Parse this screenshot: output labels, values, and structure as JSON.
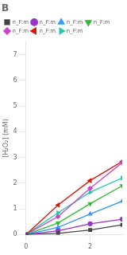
{
  "chart_data": {
    "type": "line",
    "title": "B",
    "ylabel": "[H₂O₂] (mM)",
    "xlim": [
      0,
      3
    ],
    "ylim": [
      0,
      7.5
    ],
    "xticks": [
      0,
      2
    ],
    "yticks": [
      0,
      1,
      2,
      3,
      4,
      5,
      6,
      7
    ],
    "grid": false,
    "legend": "upper left",
    "series": [
      {
        "name": "n_F:m",
        "color": "#444444",
        "marker": "square",
        "x": [
          0,
          1,
          2,
          3
        ],
        "values": [
          0,
          0.05,
          0.18,
          0.38
        ]
      },
      {
        "name": "n_F:m",
        "color": "#9933cc",
        "marker": "circle",
        "x": [
          0,
          1,
          2,
          3
        ],
        "values": [
          0,
          0.15,
          0.42,
          0.6
        ]
      },
      {
        "name": "n_F:m",
        "color": "#3399ff",
        "marker": "triangle_up",
        "x": [
          0,
          1,
          2,
          3
        ],
        "values": [
          0,
          0.28,
          0.8,
          1.3
        ]
      },
      {
        "name": "n_F:m",
        "color": "#33bb33",
        "marker": "triangle_down",
        "x": [
          0,
          1,
          2,
          3
        ],
        "values": [
          0,
          0.45,
          1.2,
          1.9
        ]
      },
      {
        "name": "n_F:m",
        "color": "#cc44cc",
        "marker": "diamond",
        "x": [
          0,
          1,
          2,
          3
        ],
        "values": [
          0,
          0.7,
          1.8,
          2.8
        ]
      },
      {
        "name": "n_F:m",
        "color": "#dd1100",
        "marker": "triangle_left",
        "x": [
          0,
          1,
          2,
          3
        ],
        "values": [
          0,
          1.15,
          2.1,
          2.85
        ]
      },
      {
        "name": "n_F:m",
        "color": "#22ccaa",
        "marker": "triangle_right",
        "x": [
          0,
          1,
          2,
          3
        ],
        "values": [
          0,
          0.85,
          1.65,
          2.2
        ]
      }
    ]
  }
}
